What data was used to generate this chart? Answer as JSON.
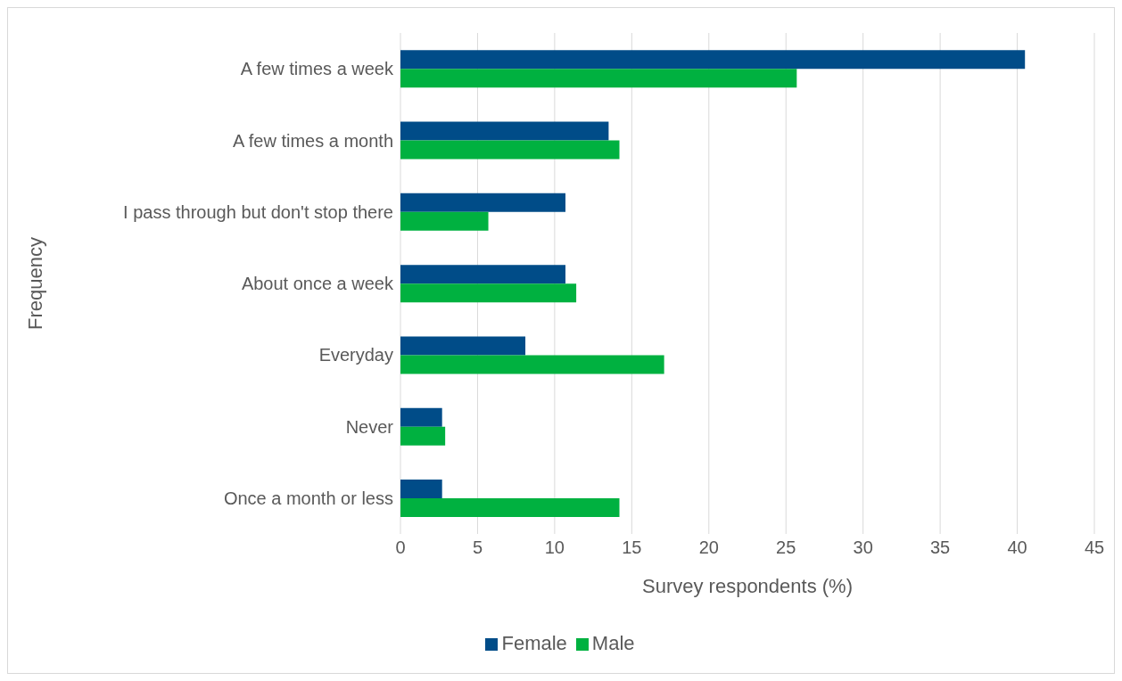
{
  "chart_data": {
    "type": "bar",
    "orientation": "horizontal",
    "xlabel": "Survey respondents (%)",
    "ylabel": "Frequency",
    "categories": [
      "A few times a week",
      "A few times a month",
      "I pass through but don't stop there",
      "About once a week",
      "Everyday",
      "Never",
      "Once a month or less"
    ],
    "series": [
      {
        "name": "Female",
        "color": "#004c88",
        "values": [
          40.5,
          13.5,
          10.7,
          10.7,
          8.1,
          2.7,
          2.7
        ]
      },
      {
        "name": "Male",
        "color": "#00b140",
        "values": [
          25.7,
          14.2,
          5.7,
          11.4,
          17.1,
          2.9,
          14.2
        ]
      }
    ],
    "xlim": [
      0,
      45
    ],
    "xticks": [
      0,
      5,
      10,
      15,
      20,
      25,
      30,
      35,
      40,
      45
    ],
    "grid": "x",
    "legend": "bottom"
  }
}
